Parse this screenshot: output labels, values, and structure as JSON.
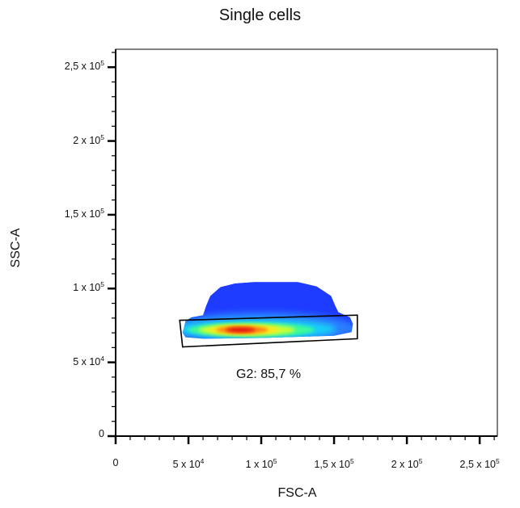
{
  "chart_data": {
    "type": "heatmap",
    "title": "Single cells",
    "xlabel": "FSC-A",
    "ylabel": "SSC-A",
    "xlim": [
      0,
      262144
    ],
    "ylim": [
      0,
      262144
    ],
    "x_ticks": [
      {
        "value": 0,
        "label": "0",
        "base": "0",
        "exp": ""
      },
      {
        "value": 50000,
        "label": "5 x 10^4",
        "base": "5 x 10",
        "exp": "4"
      },
      {
        "value": 100000,
        "label": "1 x 10^5",
        "base": "1 x 10",
        "exp": "5"
      },
      {
        "value": 150000,
        "label": "1,5 x 10^5",
        "base": "1,5 x 10",
        "exp": "5"
      },
      {
        "value": 200000,
        "label": "2 x 10^5",
        "base": "2 x 10",
        "exp": "5"
      },
      {
        "value": 250000,
        "label": "2,5 x 10^5",
        "base": "2,5 x 10",
        "exp": "5"
      }
    ],
    "y_ticks": [
      {
        "value": 0,
        "label": "0",
        "base": "0",
        "exp": ""
      },
      {
        "value": 50000,
        "label": "5 x 10^4",
        "base": "5 x 10",
        "exp": "4"
      },
      {
        "value": 100000,
        "label": "1 x 10^5",
        "base": "1 x 10",
        "exp": "5"
      },
      {
        "value": 150000,
        "label": "1,5 x 10^5",
        "base": "1,5 x 10",
        "exp": "5"
      },
      {
        "value": 200000,
        "label": "2 x 10^5",
        "base": "2 x 10",
        "exp": "5"
      },
      {
        "value": 250000,
        "label": "2,5 x 10^5",
        "base": "2,5 x 10",
        "exp": "5"
      }
    ],
    "density_region": {
      "outline": [
        [
          46000,
          70000
        ],
        [
          48000,
          78000
        ],
        [
          52000,
          80500
        ],
        [
          60000,
          82000
        ],
        [
          62000,
          88000
        ],
        [
          65000,
          95000
        ],
        [
          72000,
          101000
        ],
        [
          82000,
          103500
        ],
        [
          95000,
          104500
        ],
        [
          125000,
          104500
        ],
        [
          138000,
          101500
        ],
        [
          148000,
          95000
        ],
        [
          151000,
          88000
        ],
        [
          153000,
          84000
        ],
        [
          161000,
          80500
        ],
        [
          163000,
          76000
        ],
        [
          162000,
          70500
        ],
        [
          150000,
          68000
        ],
        [
          100000,
          66500
        ],
        [
          60000,
          66000
        ],
        [
          48000,
          67000
        ]
      ],
      "hotspot_center": [
        88000,
        72000
      ],
      "colors": [
        "#1e3cff",
        "#2a7dff",
        "#19d3f5",
        "#3dfa9a",
        "#c8ff35",
        "#ffe61a",
        "#ff7a10",
        "#e01010"
      ]
    },
    "gates": [
      {
        "name": "G2",
        "label": "G2: 85,7 %",
        "percent": 85.7,
        "polygon": [
          [
            44000,
            78500
          ],
          [
            166000,
            82000
          ],
          [
            166000,
            66000
          ],
          [
            46000,
            60500
          ]
        ]
      }
    ],
    "grid": false,
    "legend": "none"
  }
}
